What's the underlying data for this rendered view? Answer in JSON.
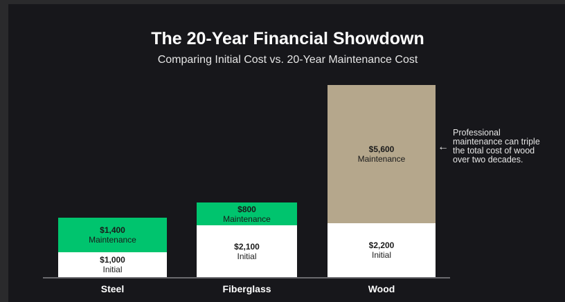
{
  "chart_data": {
    "type": "bar",
    "stacked": true,
    "title": "The 20-Year Financial Showdown",
    "subtitle": "Comparing Initial Cost vs. 20-Year Maintenance Cost",
    "categories": [
      "Steel",
      "Fiberglass",
      "Wood"
    ],
    "series": [
      {
        "name": "Initial",
        "values": [
          1000,
          2100,
          2200
        ],
        "labels": [
          "$1,000",
          "$2,100",
          "$2,200"
        ],
        "color": "#ffffff"
      },
      {
        "name": "Maintenance",
        "values": [
          1400,
          800,
          5600
        ],
        "labels": [
          "$1,400",
          "$800",
          "$5,600"
        ],
        "colors": [
          "#00c46e",
          "#00c46e",
          "#b5a78c"
        ]
      }
    ],
    "annotation": {
      "text": "Professional maintenance can triple the total cost of wood over two decades.",
      "arrow": "←",
      "target": "Wood"
    }
  },
  "colors": {
    "background": "#17171b",
    "steel_fiberglass_maintenance": "#00c46e",
    "wood_maintenance": "#b5a78c",
    "initial": "#ffffff"
  }
}
